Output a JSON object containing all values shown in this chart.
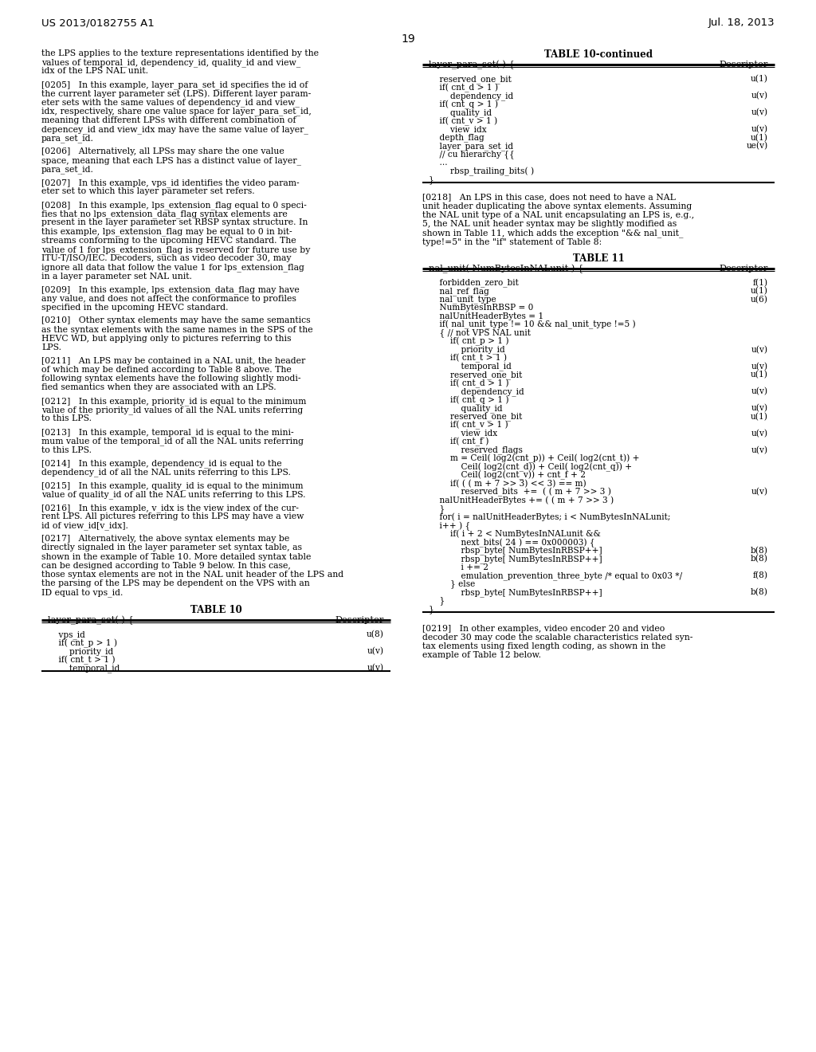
{
  "bg_color": "#ffffff",
  "header_left": "US 2013/0182755 A1",
  "header_right": "Jul. 18, 2013",
  "page_number": "19",
  "left_col_paragraphs": [
    "the LPS applies to the texture representations identified by the\nvalues of temporal_id, dependency_id, quality_id and view_\nidx of the LPS NAL unit.",
    "[0205]   In this example, layer_para_set_id specifies the id of\nthe current layer parameter set (LPS). Different layer param-\neter sets with the same values of dependency_id and view_\nidx, respectively, share one value space for layer_para_set_id,\nmeaning that different LPSs with different combination of\ndepencey_id and view_idx may have the same value of layer_\npara_set_id.",
    "[0206]   Alternatively, all LPSs may share the one value\nspace, meaning that each LPS has a distinct value of layer_\npara_set_id.",
    "[0207]   In this example, vps_id identifies the video param-\neter set to which this layer parameter set refers.",
    "[0208]   In this example, lps_extension_flag equal to 0 speci-\nfies that no lps_extension_data_flag syntax elements are\npresent in the layer parameter set RBSP syntax structure. In\nthis example, lps_extension_flag may be equal to 0 in bit-\nstreams conforming to the upcoming HEVC standard. The\nvalue of 1 for lps_extension_flag is reserved for future use by\nITU-T/ISO/IEC. Decoders, such as video decoder 30, may\nignore all data that follow the value 1 for lps_extension_flag\nin a layer parameter set NAL unit.",
    "[0209]   In this example, lps_extension_data_flag may have\nany value, and does not affect the conformance to profiles\nspecified in the upcoming HEVC standard.",
    "[0210]   Other syntax elements may have the same semantics\nas the syntax elements with the same names in the SPS of the\nHEVC WD, but applying only to pictures referring to this\nLPS.",
    "[0211]   An LPS may be contained in a NAL unit, the header\nof which may be defined according to Table 8 above. The\nfollowing syntax elements have the following slightly modi-\nfied semantics when they are associated with an LPS.",
    "[0212]   In this example, priority_id is equal to the minimum\nvalue of the priority_id values of all the NAL units referring\nto this LPS.",
    "[0213]   In this example, temporal_id is equal to the mini-\nmum value of the temporal_id of all the NAL units referring\nto this LPS.",
    "[0214]   In this example, dependency_id is equal to the\ndependency_id of all the NAL units referring to this LPS.",
    "[0215]   In this example, quality_id is equal to the minimum\nvalue of quality_id of all the NAL units referring to this LPS.",
    "[0216]   In this example, v_idx is the view index of the cur-\nrent LPS. All pictures referring to this LPS may have a view\nid of view_id[v_idx].",
    "[0217]   Alternatively, the above syntax elements may be\ndirectly signaled in the layer parameter set syntax table, as\nshown in the example of Table 10. More detailed syntax table\ncan be designed according to Table 9 below. In this case,\nthose syntax elements are not in the NAL unit header of the LPS and\nthe parsing of the LPS may be dependent on the VPS with an\nID equal to vps_id."
  ],
  "table10_title": "TABLE 10",
  "table10_col1": "layer_para_set( ) {",
  "table10_col2": "Descriptor",
  "table10_rows": [
    [
      "    vps_id",
      "u(8)"
    ],
    [
      "    if( cnt_p > 1 )",
      ""
    ],
    [
      "        priority_id",
      "u(v)"
    ],
    [
      "    if( cnt_t > 1 )",
      ""
    ],
    [
      "        temporal_id",
      "u(v)"
    ]
  ],
  "table10cont_title": "TABLE 10-continued",
  "table10cont_col1": "layer_para_set( ) {",
  "table10cont_col2": "Descriptor",
  "table10cont_rows": [
    [
      "    reserved_one_bit",
      "u(1)"
    ],
    [
      "    if( cnt_d > 1 )",
      ""
    ],
    [
      "        dependency_id",
      "u(v)"
    ],
    [
      "    if( cnt_q > 1 )",
      ""
    ],
    [
      "        quality_id",
      "u(v)"
    ],
    [
      "    if( cnt_v > 1 )",
      ""
    ],
    [
      "        view_idx",
      "u(v)"
    ],
    [
      "    depth_flag",
      "u(1)"
    ],
    [
      "    layer_para_set_id",
      "ue(v)"
    ],
    [
      "    // cu hierarchy {{",
      ""
    ],
    [
      "    ...",
      ""
    ],
    [
      "        rbsp_trailing_bits( )",
      ""
    ],
    [
      "}",
      ""
    ]
  ],
  "para0218": "[0218]   An LPS in this case, does not need to have a NAL\nunit header duplicating the above syntax elements. Assuming\nthe NAL unit type of a NAL unit encapsulating an LPS is, e.g.,\n5, the NAL unit header syntax may be slightly modified as\nshown in Table 11, which adds the exception \"&& nal_unit_\ntype!=5\" in the \"if\" statement of Table 8:",
  "table11_title": "TABLE 11",
  "table11_col1": "nal_unit( NumBytesInNALunit ) {",
  "table11_col2": "Descriptor",
  "table11_rows": [
    [
      "    forbidden_zero_bit",
      "f(1)"
    ],
    [
      "    nal_ref_flag",
      "u(1)"
    ],
    [
      "    nal_unit_type",
      "u(6)"
    ],
    [
      "    NumBytesInRBSP = 0",
      ""
    ],
    [
      "    nalUnitHeaderBytes = 1",
      ""
    ],
    [
      "    if( nal_unit_type != 10 && nal_unit_type !=5 )",
      ""
    ],
    [
      "    { // not VPS NAL unit",
      ""
    ],
    [
      "        if( cnt_p > 1 )",
      ""
    ],
    [
      "            priority_id",
      "u(v)"
    ],
    [
      "        if( cnt_t > 1 )",
      ""
    ],
    [
      "            temporal_id",
      "u(v)"
    ],
    [
      "        reserved_one_bit",
      "u(1)"
    ],
    [
      "        if( cnt_d > 1 )",
      ""
    ],
    [
      "            dependency_id",
      "u(v)"
    ],
    [
      "        if( cnt_q > 1 )",
      ""
    ],
    [
      "            quality_id",
      "u(v)"
    ],
    [
      "        reserved_one_bit",
      "u(1)"
    ],
    [
      "        if( cnt_v > 1 )",
      ""
    ],
    [
      "            view_idx",
      "u(v)"
    ],
    [
      "        if( cnt_f )",
      ""
    ],
    [
      "            reserved_flags",
      "u(v)"
    ],
    [
      "        m = Ceil( log2(cnt_p)) + Ceil( log2(cnt_t)) +",
      ""
    ],
    [
      "            Ceil( log2(cnt_d)) + Ceil( log2(cnt_q)) +",
      ""
    ],
    [
      "            Ceil( log2(cnt_v)) + cnt_f + 2",
      ""
    ],
    [
      "        if( ( ( m + 7 >> 3) << 3) == m)",
      ""
    ],
    [
      "            reserved_bits  +=  ( ( m + 7 >> 3 )",
      "u(v)"
    ],
    [
      "    nalUnitHeaderBytes += ( ( m + 7 >> 3 )",
      ""
    ],
    [
      "    }",
      ""
    ],
    [
      "    for( i = nalUnitHeaderBytes; i < NumBytesInNALunit;",
      ""
    ],
    [
      "    i++ ) {",
      ""
    ],
    [
      "        if( i + 2 < NumBytesInNALunit &&",
      ""
    ],
    [
      "            next_bits( 24 ) == 0x000003) {",
      ""
    ],
    [
      "            rbsp_byte[ NumBytesInRBSP++]",
      "b(8)"
    ],
    [
      "            rbsp_byte[ NumBytesInRBSP++]",
      "b(8)"
    ],
    [
      "            i += 2",
      ""
    ],
    [
      "            emulation_prevention_three_byte /* equal to 0x03 */",
      "f(8)"
    ],
    [
      "        } else",
      ""
    ],
    [
      "            rbsp_byte[ NumBytesInRBSP++]",
      "b(8)"
    ],
    [
      "    }",
      ""
    ],
    [
      "}",
      ""
    ]
  ],
  "para0219": "[0219]   In other examples, video encoder 20 and video\ndecoder 30 may code the scalable characteristics related syn-\ntax elements using fixed length coding, as shown in the\nexample of Table 12 below."
}
